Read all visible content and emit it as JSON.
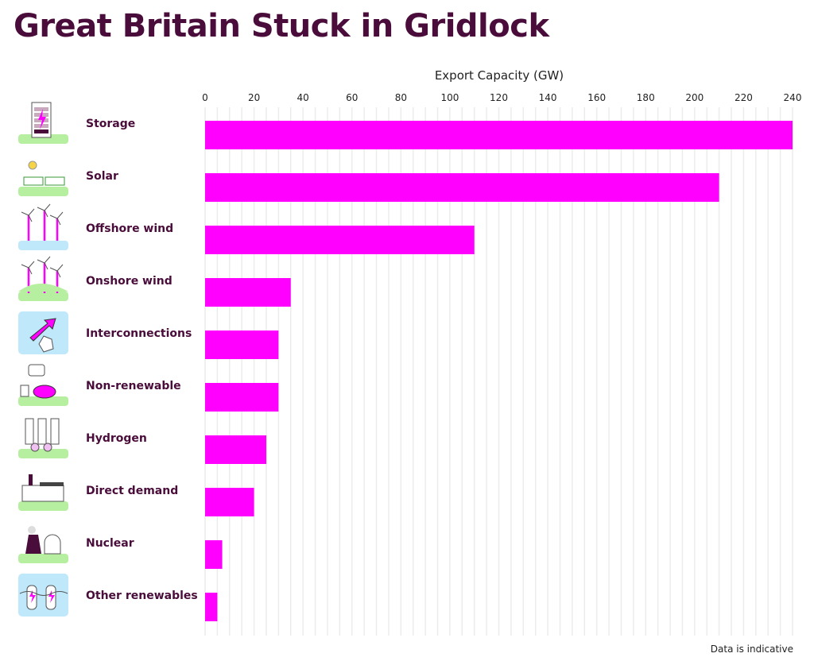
{
  "chart_data": {
    "type": "bar",
    "orientation": "horizontal",
    "title": "Great Britain Stuck in Gridlock",
    "xlabel": "Export Capacity (GW)",
    "ylabel": "",
    "xlim": [
      0,
      240
    ],
    "xticks": [
      0,
      20,
      40,
      60,
      80,
      100,
      120,
      140,
      160,
      180,
      200,
      220,
      240
    ],
    "grid_step": 5,
    "grid": true,
    "categories": [
      "Storage",
      "Solar",
      "Offshore wind",
      "Onshore wind",
      "Interconnections",
      "Non-renewable",
      "Hydrogen",
      "Direct demand",
      "Nuclear",
      "Other renewables"
    ],
    "values": [
      240,
      210,
      110,
      35,
      30,
      30,
      25,
      20,
      7,
      5
    ],
    "icons": [
      "battery-icon",
      "solar-panel-icon",
      "offshore-wind-icon",
      "onshore-wind-icon",
      "interconnector-icon",
      "gas-plant-icon",
      "hydrogen-icon",
      "factory-icon",
      "nuclear-plant-icon",
      "tidal-icon"
    ],
    "bar_color": "#ff00ff",
    "note": "Data is indicative"
  }
}
